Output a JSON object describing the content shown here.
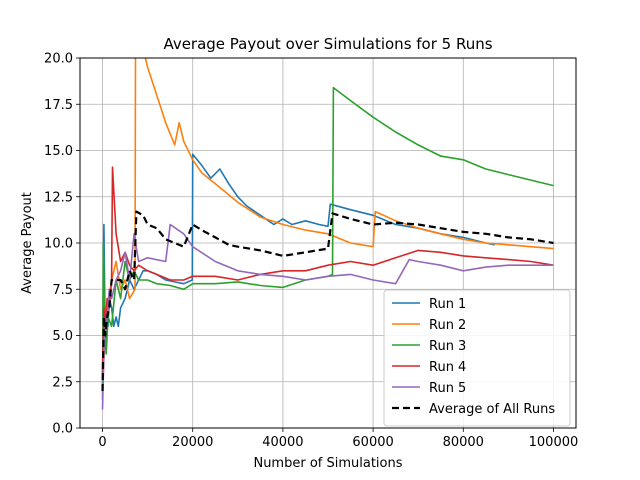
{
  "chart_data": {
    "type": "line",
    "title": "Average Payout over Simulations for 5 Runs",
    "xlabel": "Number of Simulations",
    "ylabel": "Average Payout",
    "xlim": [
      -5000,
      105000
    ],
    "ylim": [
      0,
      20
    ],
    "xticks": [
      0,
      20000,
      40000,
      60000,
      80000,
      100000
    ],
    "yticks": [
      0.0,
      2.5,
      5.0,
      7.5,
      10.0,
      12.5,
      15.0,
      17.5,
      20.0
    ],
    "grid": true,
    "legend_position": "lower-right",
    "series": [
      {
        "name": "Run 1",
        "color": "#1f77b4",
        "dash": "solid",
        "x": [
          0,
          300,
          600,
          900,
          1200,
          1500,
          2000,
          2500,
          3000,
          3500,
          4000,
          5000,
          6000,
          7000,
          8000,
          9000,
          10000,
          12000,
          14000,
          16000,
          18000,
          19900,
          20000,
          22000,
          24000,
          26000,
          28000,
          30000,
          32000,
          35000,
          38000,
          40000,
          42000,
          45000,
          48000,
          50000,
          50500,
          55000,
          60000,
          65000,
          70000,
          75000,
          80000,
          85000,
          87000
        ],
        "y": [
          2.0,
          11.0,
          4.5,
          6.0,
          5.5,
          7.0,
          6.5,
          5.5,
          6.0,
          5.5,
          6.5,
          7.0,
          8.0,
          7.5,
          8.0,
          8.5,
          8.5,
          8.3,
          8.0,
          7.9,
          7.8,
          8.0,
          14.8,
          14.2,
          13.5,
          14.0,
          13.2,
          12.5,
          12.0,
          11.5,
          11.0,
          11.3,
          11.0,
          11.2,
          11.0,
          10.9,
          12.1,
          11.8,
          11.5,
          11.0,
          10.8,
          10.5,
          10.3,
          10.0,
          9.9
        ]
      },
      {
        "name": "Run 2",
        "color": "#ff7f0e",
        "dash": "solid",
        "x": [
          0,
          500,
          1000,
          1500,
          2000,
          3000,
          4000,
          5000,
          6000,
          7200,
          7300,
          9000,
          10000,
          12000,
          14000,
          16000,
          17000,
          18000,
          20000,
          22000,
          25000,
          30000,
          35000,
          40000,
          45000,
          50000,
          55000,
          60000,
          60500,
          65000,
          70000,
          75000,
          80000,
          85000,
          90000,
          95000,
          100000
        ],
        "y": [
          2.0,
          5.0,
          6.0,
          7.0,
          8.0,
          9.0,
          7.5,
          8.0,
          7.0,
          7.5,
          20.2,
          20.5,
          19.5,
          18.0,
          16.5,
          15.3,
          16.5,
          15.5,
          14.5,
          13.8,
          13.2,
          12.2,
          11.4,
          11.0,
          10.7,
          10.5,
          10.0,
          9.8,
          11.7,
          11.2,
          10.8,
          10.5,
          10.2,
          10.0,
          9.9,
          9.8,
          9.7
        ]
      },
      {
        "name": "Run 3",
        "color": "#2ca02c",
        "dash": "solid",
        "x": [
          0,
          200,
          500,
          800,
          1200,
          2000,
          3000,
          4000,
          5000,
          6000,
          7000,
          8000,
          10000,
          12000,
          15000,
          18000,
          20000,
          25000,
          30000,
          35000,
          40000,
          45000,
          50000,
          51000,
          51200,
          55000,
          60000,
          65000,
          70000,
          75000,
          80000,
          85000,
          90000,
          95000,
          100000
        ],
        "y": [
          1.5,
          10.0,
          5.0,
          4.0,
          6.0,
          5.5,
          8.0,
          7.0,
          9.0,
          8.0,
          8.5,
          8.0,
          8.0,
          7.8,
          7.7,
          7.5,
          7.8,
          7.8,
          7.9,
          7.7,
          7.6,
          8.0,
          8.2,
          8.3,
          18.4,
          17.7,
          16.8,
          16.0,
          15.3,
          14.7,
          14.5,
          14.0,
          13.7,
          13.4,
          13.1
        ]
      },
      {
        "name": "Run 4",
        "color": "#d62728",
        "dash": "solid",
        "x": [
          0,
          300,
          600,
          1000,
          1500,
          2000,
          2200,
          3000,
          4000,
          5000,
          6000,
          7000,
          8000,
          10000,
          12000,
          15000,
          18000,
          20000,
          25000,
          30000,
          35000,
          40000,
          45000,
          50000,
          55000,
          60000,
          65000,
          70000,
          75000,
          80000,
          85000,
          90000,
          95000,
          100000
        ],
        "y": [
          3.0,
          6.5,
          5.5,
          7.0,
          6.5,
          8.0,
          14.1,
          10.5,
          9.0,
          9.5,
          8.8,
          8.5,
          8.8,
          8.5,
          8.3,
          8.0,
          8.0,
          8.2,
          8.2,
          8.0,
          8.3,
          8.5,
          8.5,
          8.8,
          9.0,
          8.8,
          9.2,
          9.6,
          9.5,
          9.3,
          9.2,
          9.1,
          9.0,
          8.8
        ]
      },
      {
        "name": "Run 5",
        "color": "#9467bd",
        "dash": "solid",
        "x": [
          0,
          300,
          600,
          1000,
          1500,
          2000,
          3000,
          4000,
          5000,
          6000,
          7000,
          8000,
          10000,
          14000,
          15000,
          18000,
          20000,
          25000,
          30000,
          35000,
          40000,
          45000,
          50000,
          55000,
          60000,
          65000,
          68000,
          70000,
          75000,
          80000,
          85000,
          90000,
          95000,
          100000
        ],
        "y": [
          1.0,
          4.0,
          5.5,
          6.0,
          7.5,
          7.0,
          8.0,
          8.5,
          9.5,
          8.0,
          10.5,
          9.0,
          9.2,
          9.0,
          11.0,
          10.5,
          9.8,
          9.0,
          8.5,
          8.3,
          8.2,
          8.0,
          8.2,
          8.3,
          8.0,
          7.8,
          9.1,
          9.0,
          8.8,
          8.5,
          8.7,
          8.8,
          8.8,
          8.8
        ]
      },
      {
        "name": "Average of All Runs",
        "color": "#000000",
        "dash": "dashed",
        "x": [
          0,
          300,
          600,
          1000,
          1500,
          2000,
          3000,
          4000,
          5000,
          6000,
          7000,
          7500,
          9000,
          10000,
          12000,
          14000,
          16000,
          18000,
          20000,
          22000,
          25000,
          28000,
          30000,
          35000,
          40000,
          45000,
          50000,
          51000,
          55000,
          60000,
          65000,
          70000,
          75000,
          80000,
          85000,
          90000,
          95000,
          100000
        ],
        "y": [
          2.0,
          6.0,
          5.0,
          6.0,
          6.5,
          8.0,
          8.0,
          8.0,
          7.5,
          8.5,
          8.0,
          11.7,
          11.5,
          11.0,
          10.8,
          10.2,
          10.0,
          9.8,
          11.0,
          10.7,
          10.3,
          9.9,
          9.8,
          9.6,
          9.3,
          9.5,
          9.7,
          11.6,
          11.3,
          11.0,
          11.1,
          11.0,
          10.8,
          10.6,
          10.5,
          10.3,
          10.2,
          10.0
        ]
      }
    ]
  }
}
